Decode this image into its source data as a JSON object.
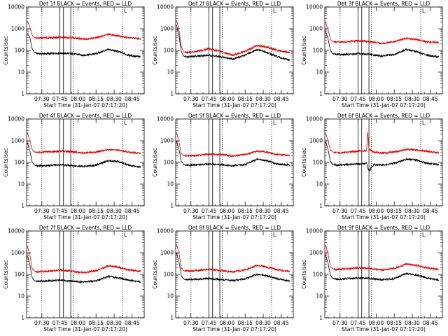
{
  "chart_data": [
    {
      "type": "line",
      "title": "Det 1f BLACK = Events, RED = LLD",
      "xlabel": "Start Time (31-Jan-07 07:17:20)",
      "ylabel": "Counts/sec",
      "y_scale": "log",
      "ylim": [
        1,
        10000
      ],
      "xlim": [
        "07:17:20",
        "08:55:00"
      ],
      "x_tick_labels": [
        "07:30",
        "07:45",
        "08:00",
        "08:15",
        "08:30",
        "08:45"
      ],
      "y_tick_labels": [
        "1",
        "10",
        "100",
        "1000",
        "10000"
      ],
      "marker_label": "L",
      "series": [
        {
          "color": "#000000",
          "x": [
            "07:18",
            "07:20",
            "07:22",
            "07:24",
            "07:27",
            "07:35",
            "07:45",
            "07:55",
            "08:05",
            "08:15",
            "08:25",
            "08:33",
            "08:42",
            "08:52"
          ],
          "values": [
            600,
            400,
            120,
            80,
            70,
            70,
            75,
            70,
            60,
            70,
            110,
            90,
            60,
            50
          ]
        },
        {
          "color": "#e00000",
          "x": [
            "07:18",
            "07:20",
            "07:22",
            "07:24",
            "07:27",
            "07:35",
            "07:45",
            "07:55",
            "08:05",
            "08:15",
            "08:25",
            "08:33",
            "08:42",
            "08:52"
          ],
          "values": [
            2200,
            1200,
            500,
            380,
            370,
            380,
            400,
            380,
            330,
            380,
            550,
            480,
            380,
            350
          ]
        }
      ]
    },
    {
      "type": "line",
      "title": "Det 2f BLACK = Events, RED = LLD",
      "xlabel": "Start Time (31-Jan-07 07:17:20)",
      "ylabel": "Counts/sec",
      "y_scale": "log",
      "ylim": [
        1,
        10000
      ],
      "xlim": [
        "07:17:20",
        "08:55:00"
      ],
      "x_tick_labels": [
        "07:30",
        "07:45",
        "08:00",
        "08:15",
        "08:30",
        "08:45"
      ],
      "y_tick_labels": [
        "1",
        "10",
        "100",
        "1000",
        "10000"
      ],
      "marker_label": "L",
      "series": [
        {
          "color": "#000000",
          "x": [
            "07:18",
            "07:20",
            "07:22",
            "07:24",
            "07:27",
            "07:35",
            "07:45",
            "07:55",
            "08:05",
            "08:15",
            "08:25",
            "08:33",
            "08:42",
            "08:52"
          ],
          "values": [
            1500,
            500,
            90,
            55,
            50,
            55,
            60,
            50,
            40,
            60,
            110,
            80,
            50,
            35
          ]
        },
        {
          "color": "#e00000",
          "x": [
            "07:18",
            "07:20",
            "07:22",
            "07:24",
            "07:27",
            "07:35",
            "07:45",
            "07:55",
            "08:05",
            "08:15",
            "08:25",
            "08:33",
            "08:42",
            "08:52"
          ],
          "values": [
            2500,
            900,
            150,
            85,
            80,
            90,
            120,
            90,
            60,
            90,
            170,
            140,
            100,
            80
          ]
        }
      ]
    },
    {
      "type": "line",
      "title": "Det 3f BLACK = Events, RED = LLD",
      "xlabel": "Start Time (31-Jan-07 07:17:20)",
      "ylabel": "Counts/sec",
      "y_scale": "log",
      "ylim": [
        1,
        10000
      ],
      "xlim": [
        "07:17:20",
        "08:55:00"
      ],
      "x_tick_labels": [
        "07:30",
        "07:45",
        "08:00",
        "08:15",
        "08:30",
        "08:45"
      ],
      "y_tick_labels": [
        "1",
        "10",
        "100",
        "1000",
        "10000"
      ],
      "marker_label": "L",
      "series": [
        {
          "color": "#000000",
          "x": [
            "07:18",
            "07:20",
            "07:22",
            "07:24",
            "07:27",
            "07:35",
            "07:45",
            "07:55",
            "08:05",
            "08:15",
            "08:25",
            "08:33",
            "08:42",
            "08:52"
          ],
          "values": [
            800,
            350,
            100,
            70,
            65,
            65,
            70,
            65,
            55,
            65,
            110,
            90,
            60,
            50
          ]
        },
        {
          "color": "#e00000",
          "x": [
            "07:18",
            "07:20",
            "07:22",
            "07:24",
            "07:27",
            "07:35",
            "07:45",
            "07:55",
            "08:05",
            "08:15",
            "08:25",
            "08:33",
            "08:42",
            "08:52"
          ],
          "values": [
            2000,
            900,
            330,
            250,
            240,
            250,
            280,
            250,
            210,
            250,
            360,
            320,
            250,
            230
          ]
        }
      ]
    },
    {
      "type": "line",
      "title": "Det 4f BLACK = Events, RED = LLD",
      "xlabel": "Start Time (31-Jan-07 07:17:20)",
      "ylabel": "Counts/sec",
      "y_scale": "log",
      "ylim": [
        1,
        10000
      ],
      "xlim": [
        "07:17:20",
        "08:55:00"
      ],
      "x_tick_labels": [
        "07:30",
        "07:45",
        "08:00",
        "08:15",
        "08:30",
        "08:45"
      ],
      "y_tick_labels": [
        "1",
        "10",
        "100",
        "1000",
        "10000"
      ],
      "marker_label": "L",
      "series": [
        {
          "color": "#000000",
          "x": [
            "07:18",
            "07:20",
            "07:22",
            "07:24",
            "07:27",
            "07:35",
            "07:45",
            "07:55",
            "08:05",
            "08:15",
            "08:25",
            "08:33",
            "08:42",
            "08:52"
          ],
          "values": [
            800,
            350,
            100,
            75,
            70,
            72,
            78,
            72,
            65,
            75,
            120,
            110,
            75,
            60
          ]
        },
        {
          "color": "#e00000",
          "x": [
            "07:18",
            "07:20",
            "07:22",
            "07:24",
            "07:27",
            "07:35",
            "07:45",
            "07:55",
            "08:05",
            "08:15",
            "08:25",
            "08:33",
            "08:42",
            "08:52"
          ],
          "values": [
            2400,
            1000,
            380,
            300,
            290,
            300,
            330,
            310,
            270,
            300,
            390,
            370,
            300,
            260
          ]
        }
      ]
    },
    {
      "type": "line",
      "title": "Det 5f BLACK = Events, RED = LLD",
      "xlabel": "Start Time (31-Jan-07 07:17:20)",
      "ylabel": "Counts/sec",
      "y_scale": "log",
      "ylim": [
        1,
        10000
      ],
      "xlim": [
        "07:17:20",
        "08:55:00"
      ],
      "x_tick_labels": [
        "07:30",
        "07:45",
        "08:00",
        "08:15",
        "08:30",
        "08:45"
      ],
      "y_tick_labels": [
        "1",
        "10",
        "100",
        "1000",
        "10000"
      ],
      "marker_label": "L",
      "series": [
        {
          "color": "#000000",
          "x": [
            "07:18",
            "07:20",
            "07:22",
            "07:24",
            "07:27",
            "07:35",
            "07:45",
            "07:55",
            "08:05",
            "08:15",
            "08:25",
            "08:33",
            "08:42",
            "08:52"
          ],
          "values": [
            1000,
            400,
            110,
            80,
            75,
            78,
            85,
            80,
            70,
            80,
            140,
            120,
            85,
            75
          ]
        },
        {
          "color": "#e00000",
          "x": [
            "07:18",
            "07:20",
            "07:22",
            "07:24",
            "07:27",
            "07:35",
            "07:45",
            "07:55",
            "08:05",
            "08:15",
            "08:25",
            "08:33",
            "08:42",
            "08:52"
          ],
          "values": [
            2400,
            900,
            260,
            210,
            200,
            210,
            240,
            230,
            200,
            230,
            330,
            300,
            230,
            210
          ]
        }
      ]
    },
    {
      "type": "line",
      "title": "Det 6f BLACK = Events, RED = LLD",
      "xlabel": "Start Time (31-Jan-07 07:17:20)",
      "ylabel": "Counts/sec",
      "y_scale": "log",
      "ylim": [
        1,
        10000
      ],
      "xlim": [
        "07:17:20",
        "08:55:00"
      ],
      "x_tick_labels": [
        "07:30",
        "07:45",
        "08:00",
        "08:15",
        "08:30",
        "08:45"
      ],
      "y_tick_labels": [
        "1",
        "10",
        "100",
        "1000",
        "10000"
      ],
      "marker_label": "L",
      "series": [
        {
          "color": "#000000",
          "x": [
            "07:18",
            "07:20",
            "07:22",
            "07:24",
            "07:27",
            "07:35",
            "07:45",
            "07:52",
            "07:54",
            "07:58",
            "08:05",
            "08:15",
            "08:25",
            "08:33",
            "08:42",
            "08:52"
          ],
          "values": [
            900,
            400,
            110,
            80,
            75,
            78,
            85,
            90,
            40,
            80,
            75,
            90,
            140,
            130,
            90,
            80
          ]
        },
        {
          "color": "#e00000",
          "x": [
            "07:18",
            "07:20",
            "07:22",
            "07:24",
            "07:27",
            "07:35",
            "07:45",
            "07:52",
            "07:53",
            "07:54",
            "07:58",
            "08:05",
            "08:15",
            "08:25",
            "08:33",
            "08:42",
            "08:52"
          ],
          "values": [
            2200,
            1000,
            380,
            300,
            280,
            290,
            330,
            340,
            2600,
            400,
            300,
            270,
            300,
            400,
            380,
            320,
            280
          ]
        }
      ]
    },
    {
      "type": "line",
      "title": "Det 7f BLACK = Events, RED = LLD",
      "xlabel": "Start Time (31-Jan-07 07:17:20)",
      "ylabel": "Counts/sec",
      "y_scale": "log",
      "ylim": [
        1,
        10000
      ],
      "xlim": [
        "07:17:20",
        "08:55:00"
      ],
      "x_tick_labels": [
        "07:30",
        "07:45",
        "08:00",
        "08:15",
        "08:30",
        "08:45"
      ],
      "y_tick_labels": [
        "1",
        "10",
        "100",
        "1000",
        "10000"
      ],
      "marker_label": "L",
      "series": [
        {
          "color": "#000000",
          "x": [
            "07:18",
            "07:20",
            "07:22",
            "07:24",
            "07:27",
            "07:35",
            "07:45",
            "07:55",
            "08:05",
            "08:15",
            "08:25",
            "08:33",
            "08:42",
            "08:52"
          ],
          "values": [
            700,
            300,
            70,
            50,
            48,
            50,
            55,
            48,
            45,
            50,
            80,
            70,
            55,
            45
          ]
        },
        {
          "color": "#e00000",
          "x": [
            "07:18",
            "07:20",
            "07:22",
            "07:24",
            "07:27",
            "07:35",
            "07:45",
            "07:55",
            "08:05",
            "08:15",
            "08:25",
            "08:33",
            "08:42",
            "08:52"
          ],
          "values": [
            2000,
            800,
            190,
            140,
            130,
            140,
            160,
            140,
            120,
            150,
            250,
            220,
            160,
            140
          ]
        }
      ]
    },
    {
      "type": "line",
      "title": "Det 8f BLACK = Events, RED = LLD",
      "xlabel": "Start Time (31-Jan-07 07:17:20)",
      "ylabel": "Counts/sec",
      "y_scale": "log",
      "ylim": [
        1,
        10000
      ],
      "xlim": [
        "07:17:20",
        "08:55:00"
      ],
      "x_tick_labels": [
        "07:30",
        "07:45",
        "08:00",
        "08:15",
        "08:30",
        "08:45"
      ],
      "y_tick_labels": [
        "1",
        "10",
        "100",
        "1000",
        "10000"
      ],
      "marker_label": "L",
      "series": [
        {
          "color": "#000000",
          "x": [
            "07:18",
            "07:20",
            "07:22",
            "07:24",
            "07:27",
            "07:35",
            "07:45",
            "07:55",
            "08:05",
            "08:15",
            "08:25",
            "08:33",
            "08:42",
            "08:52"
          ],
          "values": [
            1000,
            400,
            90,
            60,
            58,
            60,
            65,
            58,
            52,
            62,
            100,
            85,
            62,
            50
          ]
        },
        {
          "color": "#e00000",
          "x": [
            "07:18",
            "07:20",
            "07:22",
            "07:24",
            "07:27",
            "07:35",
            "07:45",
            "07:55",
            "08:05",
            "08:15",
            "08:25",
            "08:33",
            "08:42",
            "08:52"
          ],
          "values": [
            2600,
            1000,
            200,
            150,
            140,
            150,
            170,
            150,
            130,
            160,
            260,
            220,
            160,
            140
          ]
        }
      ]
    },
    {
      "type": "line",
      "title": "Det 9f BLACK = Events, RED = LLD",
      "xlabel": "Start Time (31-Jan-07 07:17:20)",
      "ylabel": "Counts/sec",
      "y_scale": "log",
      "ylim": [
        1,
        10000
      ],
      "xlim": [
        "07:17:20",
        "08:55:00"
      ],
      "x_tick_labels": [
        "07:30",
        "07:45",
        "08:00",
        "08:15",
        "08:30",
        "08:45"
      ],
      "y_tick_labels": [
        "1",
        "10",
        "100",
        "1000",
        "10000"
      ],
      "marker_label": "L",
      "series": [
        {
          "color": "#000000",
          "x": [
            "07:18",
            "07:20",
            "07:22",
            "07:24",
            "07:27",
            "07:35",
            "07:45",
            "07:55",
            "08:05",
            "08:15",
            "08:25",
            "08:33",
            "08:42",
            "08:52"
          ],
          "values": [
            800,
            330,
            90,
            65,
            60,
            62,
            70,
            65,
            55,
            65,
            110,
            95,
            70,
            55
          ]
        },
        {
          "color": "#e00000",
          "x": [
            "07:18",
            "07:20",
            "07:22",
            "07:24",
            "07:27",
            "07:35",
            "07:45",
            "07:55",
            "08:05",
            "08:15",
            "08:25",
            "08:33",
            "08:42",
            "08:52"
          ],
          "values": [
            2200,
            900,
            230,
            180,
            170,
            180,
            200,
            190,
            160,
            190,
            300,
            260,
            200,
            170
          ]
        }
      ]
    }
  ],
  "solid_markers": [
    "07:45",
    "07:48",
    "07:54"
  ],
  "dotted_markers": [
    "07:30",
    "07:56",
    "08:37"
  ],
  "colors": {
    "events": "#000000",
    "lld": "#e00000",
    "background": "#ffffff"
  }
}
